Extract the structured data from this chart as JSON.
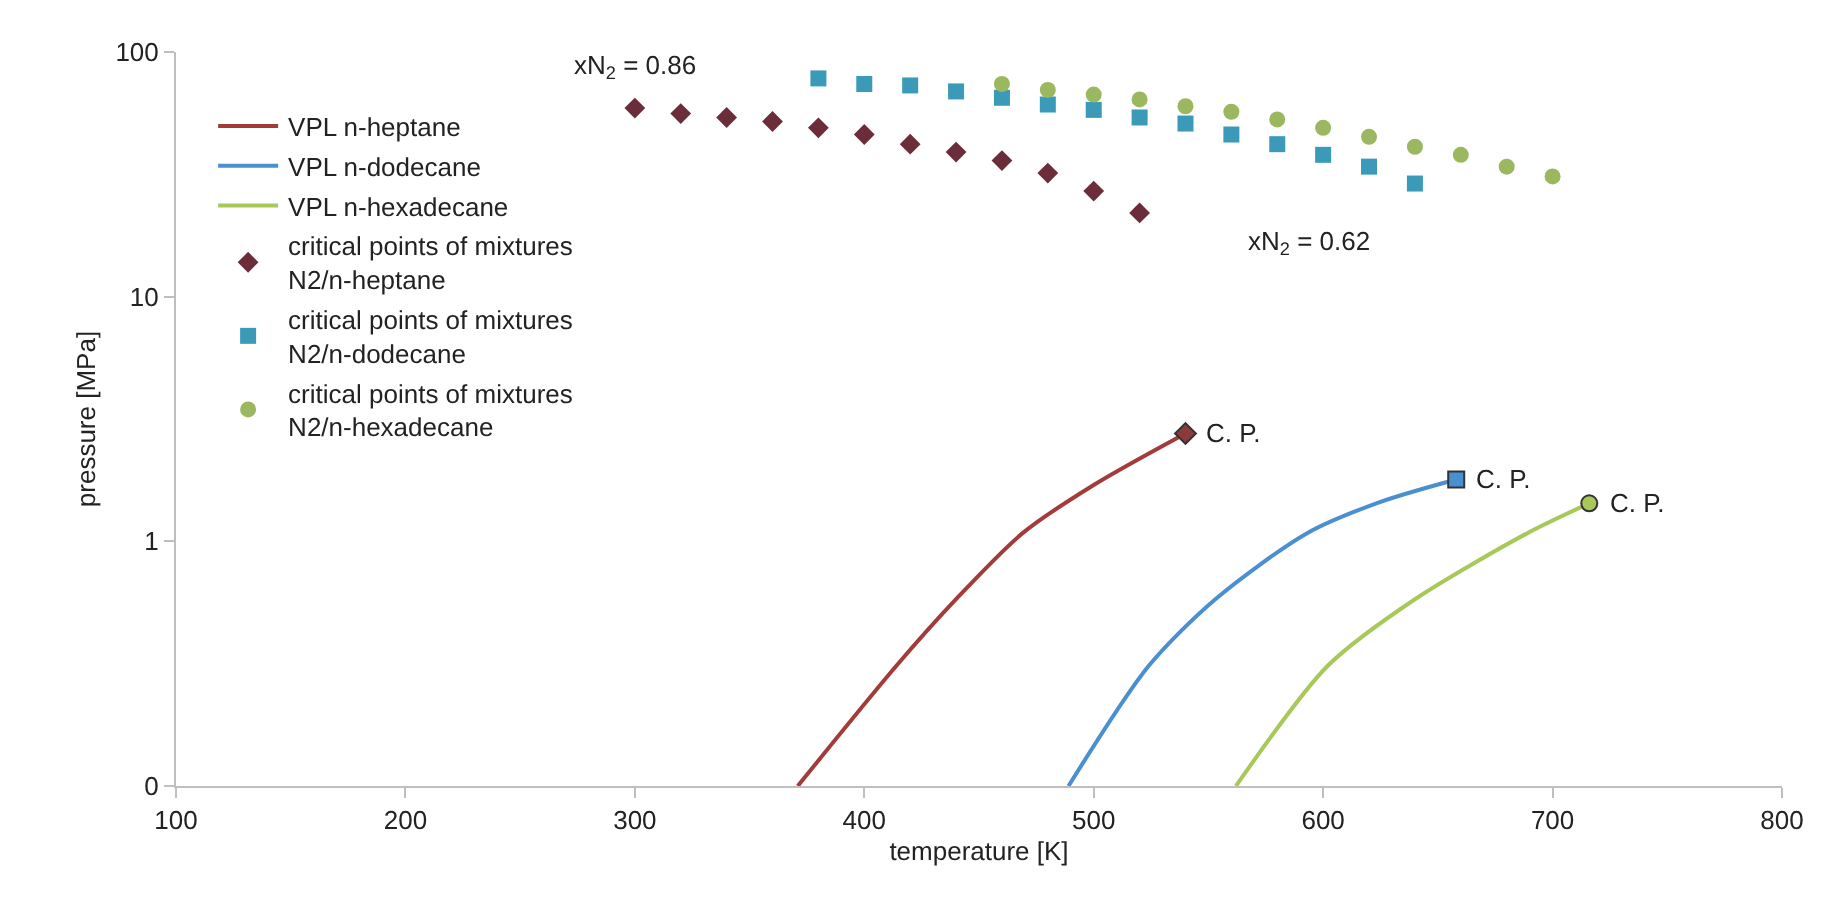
{
  "chart_data": {
    "type": "line",
    "xlabel": "temperature [K]",
    "ylabel": "pressure [MPa]",
    "log": "y",
    "grid": false,
    "legend": "top left",
    "xlim": [
      100,
      800
    ],
    "xticks": [
      100,
      200,
      300,
      400,
      500,
      600,
      700,
      800
    ],
    "ylim": [
      0.1,
      100
    ],
    "yticks": [
      {
        "value": 0.1,
        "label": "0"
      },
      1,
      10,
      100
    ],
    "series": [
      {
        "name": "VPL n-heptane",
        "color": "#a33b3b",
        "x": [
          371,
          414,
          440,
          469,
          500,
          540
        ],
        "values": [
          0.1,
          0.31,
          0.58,
          1.08,
          1.7,
          2.76
        ]
      },
      {
        "name": "VPL n-dodecane",
        "color": "#4a8fd0",
        "x": [
          489,
          524,
          553,
          593,
          625,
          658
        ],
        "values": [
          0.1,
          0.31,
          0.58,
          1.08,
          1.45,
          1.79
        ]
      },
      {
        "name": "VPL n-hexadecane",
        "color": "#a8c85a",
        "x": [
          562,
          602,
          640,
          689,
          716
        ],
        "values": [
          0.1,
          0.31,
          0.58,
          1.08,
          1.43
        ]
      },
      {
        "name": "critical points of mixtures\nN2/n-heptane",
        "type": "scatter",
        "color": "#6b2d3a",
        "marker": "diamond",
        "x": [
          300,
          320,
          340,
          360,
          380,
          400,
          420,
          440,
          460,
          480,
          500,
          520
        ],
        "values": [
          59,
          56,
          54,
          52,
          49,
          46,
          42,
          39,
          36,
          32,
          27,
          22
        ]
      },
      {
        "name": "critical points of mixtures\nN2/n-dodecane",
        "type": "scatter",
        "color": "#3a9ab8",
        "marker": "square",
        "x": [
          380,
          400,
          420,
          440,
          460,
          480,
          500,
          520,
          540,
          560,
          580,
          600,
          620,
          640
        ],
        "values": [
          78,
          74,
          73,
          69,
          65,
          61,
          58,
          54,
          51,
          46,
          42,
          38,
          34,
          29
        ]
      },
      {
        "name": "critical points of mixtures\nN2/n-hexadecane",
        "type": "scatter",
        "color": "#9bb860",
        "marker": "circle",
        "x": [
          460,
          480,
          500,
          520,
          540,
          560,
          580,
          600,
          620,
          640,
          660,
          680,
          700
        ],
        "values": [
          74,
          70,
          67,
          64,
          60,
          57,
          53,
          49,
          45,
          41,
          38,
          34,
          31
        ]
      },
      {
        "type": "scatter",
        "color": "#8a3a3a",
        "marker": "diamond",
        "x": [
          540
        ],
        "values": [
          2.76
        ]
      },
      {
        "type": "scatter",
        "color": "#4a8fd0",
        "marker": "square",
        "x": [
          658
        ],
        "values": [
          1.79
        ]
      },
      {
        "type": "scatter",
        "color": "#a8c85a",
        "marker": "circle",
        "x": [
          716
        ],
        "values": [
          1.43
        ]
      }
    ],
    "annotations": [
      "xN$_{2}$ = 0.86",
      "xN$_{2}$ = 0.62",
      {
        "text": "C. P.",
        "x": 540,
        "y": 2.76
      },
      {
        "text": "C. P.",
        "x": 658,
        "y": 1.79
      },
      {
        "text": "C. P.",
        "x": 716,
        "y": 1.43
      }
    ]
  }
}
